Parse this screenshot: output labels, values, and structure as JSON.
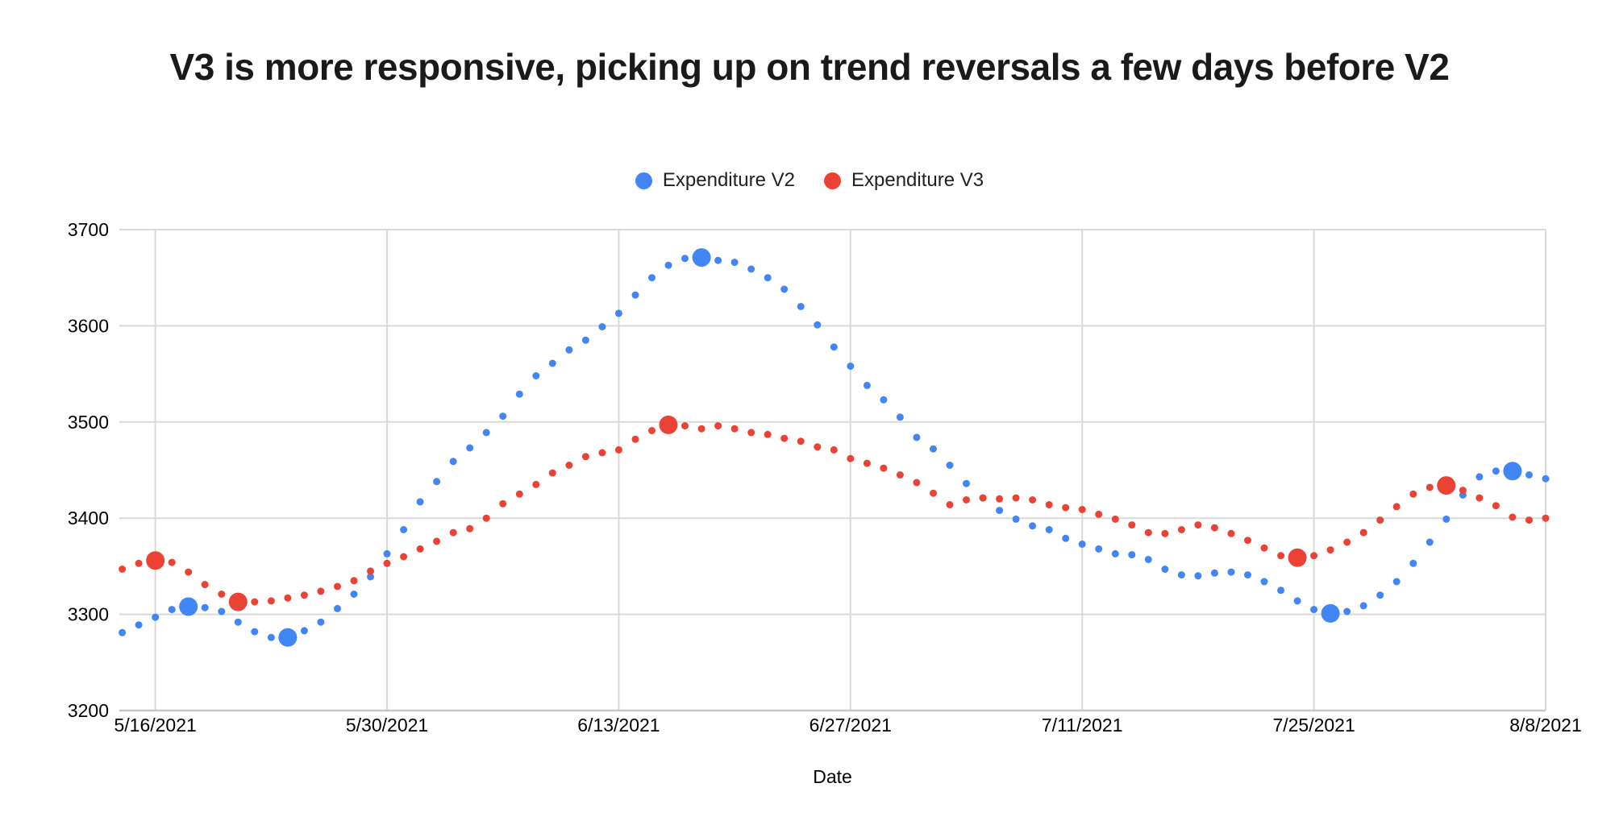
{
  "colors": {
    "grid": "#d9d9d9",
    "axis_line": "#c7c7c7",
    "tick_text": "#000000",
    "title_text": "#1a1a1a"
  },
  "chart_data": {
    "type": "scatter",
    "title": "V3 is more responsive, picking up on trend reversals a few days before V2",
    "xlabel": "Date",
    "ylabel": "",
    "ylim": [
      3200,
      3700
    ],
    "y_ticks": [
      3200,
      3300,
      3400,
      3500,
      3600,
      3700
    ],
    "x_ticks": [
      "5/16/2021",
      "5/30/2021",
      "6/13/2021",
      "6/27/2021",
      "7/11/2021",
      "7/25/2021",
      "8/8/2021"
    ],
    "grid": true,
    "legend_position": "top",
    "marker_radius": 4.5,
    "highlight_radius": 11.5,
    "dates": [
      "5/14/2021",
      "5/15/2021",
      "5/16/2021",
      "5/17/2021",
      "5/18/2021",
      "5/19/2021",
      "5/20/2021",
      "5/21/2021",
      "5/22/2021",
      "5/23/2021",
      "5/24/2021",
      "5/25/2021",
      "5/26/2021",
      "5/27/2021",
      "5/28/2021",
      "5/29/2021",
      "5/30/2021",
      "5/31/2021",
      "6/1/2021",
      "6/2/2021",
      "6/3/2021",
      "6/4/2021",
      "6/5/2021",
      "6/6/2021",
      "6/7/2021",
      "6/8/2021",
      "6/9/2021",
      "6/10/2021",
      "6/11/2021",
      "6/12/2021",
      "6/13/2021",
      "6/14/2021",
      "6/15/2021",
      "6/16/2021",
      "6/17/2021",
      "6/18/2021",
      "6/19/2021",
      "6/20/2021",
      "6/21/2021",
      "6/22/2021",
      "6/23/2021",
      "6/24/2021",
      "6/25/2021",
      "6/26/2021",
      "6/27/2021",
      "6/28/2021",
      "6/29/2021",
      "6/30/2021",
      "7/1/2021",
      "7/2/2021",
      "7/3/2021",
      "7/4/2021",
      "7/5/2021",
      "7/6/2021",
      "7/7/2021",
      "7/8/2021",
      "7/9/2021",
      "7/10/2021",
      "7/11/2021",
      "7/12/2021",
      "7/13/2021",
      "7/14/2021",
      "7/15/2021",
      "7/16/2021",
      "7/17/2021",
      "7/18/2021",
      "7/19/2021",
      "7/20/2021",
      "7/21/2021",
      "7/22/2021",
      "7/23/2021",
      "7/24/2021",
      "7/25/2021",
      "7/26/2021",
      "7/27/2021",
      "7/28/2021",
      "7/29/2021",
      "7/30/2021",
      "7/31/2021",
      "8/1/2021",
      "8/2/2021",
      "8/3/2021",
      "8/4/2021",
      "8/5/2021",
      "8/6/2021",
      "8/7/2021",
      "8/8/2021"
    ],
    "series": [
      {
        "name": "Expenditure V2",
        "color": "#4285F4",
        "values": [
          3281,
          3289,
          3297,
          3305,
          3308,
          3307,
          3303,
          3292,
          3282,
          3276,
          3276,
          3283,
          3292,
          3306,
          3321,
          3339,
          3363,
          3388,
          3417,
          3438,
          3459,
          3473,
          3489,
          3506,
          3529,
          3548,
          3561,
          3575,
          3585,
          3599,
          3613,
          3632,
          3650,
          3663,
          3670,
          3671,
          3668,
          3666,
          3659,
          3650,
          3638,
          3620,
          3601,
          3578,
          3558,
          3538,
          3523,
          3505,
          3484,
          3472,
          3455,
          3436,
          3421,
          3408,
          3399,
          3392,
          3388,
          3379,
          3373,
          3368,
          3363,
          3362,
          3357,
          3347,
          3341,
          3340,
          3343,
          3344,
          3341,
          3334,
          3325,
          3314,
          3305,
          3301,
          3303,
          3309,
          3320,
          3334,
          3353,
          3375,
          3399,
          3424,
          3443,
          3449,
          3449,
          3445,
          3441
        ],
        "highlight_dates": [
          "5/18/2021",
          "5/24/2021",
          "6/18/2021",
          "7/26/2021",
          "8/6/2021"
        ]
      },
      {
        "name": "Expenditure V3",
        "color": "#EA4335",
        "values": [
          3347,
          3353,
          3356,
          3354,
          3344,
          3331,
          3321,
          3313,
          3313,
          3314,
          3317,
          3320,
          3324,
          3329,
          3335,
          3345,
          3353,
          3360,
          3368,
          3376,
          3385,
          3389,
          3400,
          3415,
          3425,
          3435,
          3447,
          3455,
          3464,
          3468,
          3471,
          3482,
          3491,
          3497,
          3496,
          3493,
          3496,
          3493,
          3489,
          3487,
          3483,
          3480,
          3474,
          3471,
          3462,
          3457,
          3452,
          3445,
          3437,
          3426,
          3414,
          3419,
          3421,
          3420,
          3421,
          3419,
          3414,
          3411,
          3409,
          3404,
          3399,
          3393,
          3385,
          3384,
          3388,
          3393,
          3390,
          3384,
          3377,
          3369,
          3361,
          3359,
          3361,
          3367,
          3375,
          3385,
          3398,
          3412,
          3425,
          3432,
          3434,
          3429,
          3421,
          3413,
          3401,
          3398,
          3400
        ],
        "highlight_dates": [
          "5/16/2021",
          "5/21/2021",
          "6/16/2021",
          "7/24/2021",
          "8/2/2021"
        ]
      }
    ]
  }
}
